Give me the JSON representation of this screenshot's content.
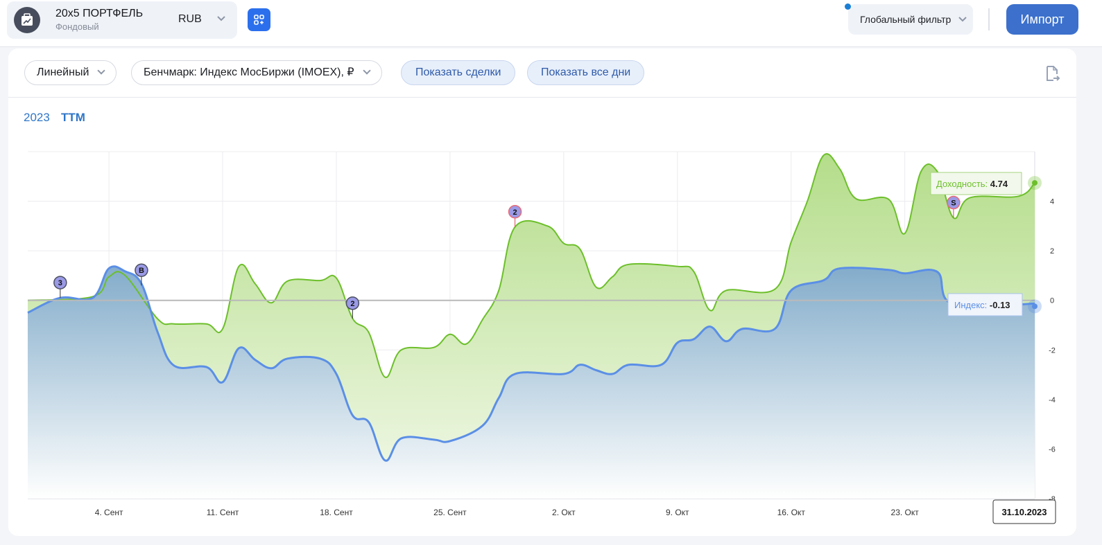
{
  "header": {
    "portfolio_title": "20x5 ПОРТФЕЛЬ",
    "portfolio_type": "Фондовый",
    "currency": "RUB",
    "global_filter": "Глобальный фильтр",
    "import_label": "Импорт"
  },
  "toolbar": {
    "scale": "Линейный",
    "benchmark": "Бенчмарк: Индекс МосБиржи (IMOEX), ₽",
    "show_trades": "Показать сделки",
    "show_all_days": "Показать все дни"
  },
  "tabs": [
    {
      "label": "2023",
      "active": false
    },
    {
      "label": "TTM",
      "active": true
    }
  ],
  "colors": {
    "portfolio": "#6cbf2a",
    "index": "#5b8fe6",
    "accent": "#3c70cc"
  },
  "chart_data": {
    "type": "area",
    "xlim": [
      "2023-08-30",
      "2023-10-31"
    ],
    "ylim": [
      -8,
      6
    ],
    "yticks": [
      -8,
      -6,
      -4,
      -2,
      0,
      2,
      4
    ],
    "xticks": [
      {
        "date": "2023-09-04",
        "label": "4. Сент"
      },
      {
        "date": "2023-09-11",
        "label": "11. Сент"
      },
      {
        "date": "2023-09-18",
        "label": "18. Сент"
      },
      {
        "date": "2023-09-25",
        "label": "25. Сент"
      },
      {
        "date": "2023-10-02",
        "label": "2. Окт"
      },
      {
        "date": "2023-10-09",
        "label": "9. Окт"
      },
      {
        "date": "2023-10-16",
        "label": "16. Окт"
      },
      {
        "date": "2023-10-23",
        "label": "23. Окт"
      }
    ],
    "grid": true,
    "series": [
      {
        "name": "Доходность",
        "color": "#6cbf2a",
        "last": "4.74",
        "points": [
          [
            "2023-08-30",
            0
          ],
          [
            "2023-09-03",
            0.15
          ],
          [
            "2023-09-04",
            0.95
          ],
          [
            "2023-09-05",
            1.0
          ],
          [
            "2023-09-07",
            -0.75
          ],
          [
            "2023-09-08",
            -0.95
          ],
          [
            "2023-09-10",
            -0.95
          ],
          [
            "2023-09-11",
            -1.15
          ],
          [
            "2023-09-12",
            1.37
          ],
          [
            "2023-09-13",
            0.67
          ],
          [
            "2023-09-14",
            -0.1
          ],
          [
            "2023-09-15",
            0.78
          ],
          [
            "2023-09-17",
            0.8
          ],
          [
            "2023-09-18",
            0.9
          ],
          [
            "2023-09-19",
            -0.73
          ],
          [
            "2023-09-20",
            -1.3
          ],
          [
            "2023-09-21",
            -3.1
          ],
          [
            "2023-09-22",
            -2.0
          ],
          [
            "2023-09-24",
            -1.9
          ],
          [
            "2023-09-25",
            -1.37
          ],
          [
            "2023-09-26",
            -1.76
          ],
          [
            "2023-09-27",
            -0.78
          ],
          [
            "2023-09-28",
            0.4
          ],
          [
            "2023-09-29",
            2.96
          ],
          [
            "2023-10-01",
            3.0
          ],
          [
            "2023-10-02",
            2.3
          ],
          [
            "2023-10-03",
            2.07
          ],
          [
            "2023-10-04",
            0.53
          ],
          [
            "2023-10-05",
            0.95
          ],
          [
            "2023-10-06",
            1.45
          ],
          [
            "2023-10-09",
            1.37
          ],
          [
            "2023-10-10",
            1.17
          ],
          [
            "2023-10-11",
            -0.4
          ],
          [
            "2023-10-12",
            0.4
          ],
          [
            "2023-10-15",
            0.45
          ],
          [
            "2023-10-16",
            2.35
          ],
          [
            "2023-10-17",
            4.0
          ],
          [
            "2023-10-18",
            5.85
          ],
          [
            "2023-10-19",
            5.3
          ],
          [
            "2023-10-20",
            4.1
          ],
          [
            "2023-10-22",
            4.08
          ],
          [
            "2023-10-23",
            2.7
          ],
          [
            "2023-10-24",
            5.2
          ],
          [
            "2023-10-25",
            5.2
          ],
          [
            "2023-10-26",
            3.33
          ],
          [
            "2023-10-27",
            4.14
          ],
          [
            "2023-10-30",
            4.2
          ],
          [
            "2023-10-31",
            4.74
          ]
        ]
      },
      {
        "name": "Индекс",
        "color": "#5b8fe6",
        "last": "-0.13",
        "points": [
          [
            "2023-08-30",
            -0.5
          ],
          [
            "2023-09-01",
            0.1
          ],
          [
            "2023-09-03",
            0.1
          ],
          [
            "2023-09-04",
            1.29
          ],
          [
            "2023-09-05",
            1.17
          ],
          [
            "2023-09-06",
            0.67
          ],
          [
            "2023-09-07",
            -1.29
          ],
          [
            "2023-09-08",
            -2.63
          ],
          [
            "2023-09-10",
            -2.69
          ],
          [
            "2023-09-11",
            -3.3
          ],
          [
            "2023-09-12",
            -1.93
          ],
          [
            "2023-09-13",
            -2.4
          ],
          [
            "2023-09-14",
            -2.74
          ],
          [
            "2023-09-15",
            -2.35
          ],
          [
            "2023-09-17",
            -2.35
          ],
          [
            "2023-09-18",
            -2.97
          ],
          [
            "2023-09-19",
            -4.64
          ],
          [
            "2023-09-20",
            -4.92
          ],
          [
            "2023-09-21",
            -6.46
          ],
          [
            "2023-09-22",
            -5.57
          ],
          [
            "2023-09-24",
            -5.62
          ],
          [
            "2023-09-25",
            -5.68
          ],
          [
            "2023-09-27",
            -5.06
          ],
          [
            "2023-09-28",
            -3.94
          ],
          [
            "2023-09-29",
            -2.97
          ],
          [
            "2023-10-02",
            -2.97
          ],
          [
            "2023-10-03",
            -2.6
          ],
          [
            "2023-10-04",
            -2.82
          ],
          [
            "2023-10-05",
            -2.97
          ],
          [
            "2023-10-06",
            -2.6
          ],
          [
            "2023-10-08",
            -2.6
          ],
          [
            "2023-10-09",
            -1.71
          ],
          [
            "2023-10-10",
            -1.57
          ],
          [
            "2023-10-11",
            -1.06
          ],
          [
            "2023-10-12",
            -1.65
          ],
          [
            "2023-10-13",
            -1.15
          ],
          [
            "2023-10-15",
            -1.15
          ],
          [
            "2023-10-16",
            0.4
          ],
          [
            "2023-10-18",
            0.81
          ],
          [
            "2023-10-19",
            1.29
          ],
          [
            "2023-10-22",
            1.23
          ],
          [
            "2023-10-23",
            1.09
          ],
          [
            "2023-10-25",
            1.15
          ],
          [
            "2023-10-26",
            -0.17
          ],
          [
            "2023-10-31",
            -0.13
          ]
        ]
      }
    ],
    "markers": [
      {
        "date": "2023-09-01",
        "value": 0.1,
        "label": "3",
        "type": "dark"
      },
      {
        "date": "2023-09-06",
        "value": 0.6,
        "label": "B",
        "type": "dark"
      },
      {
        "date": "2023-09-19",
        "value": -0.73,
        "label": "2",
        "type": "dark"
      },
      {
        "date": "2023-09-29",
        "value": 2.96,
        "label": "2",
        "type": "red"
      },
      {
        "date": "2023-10-26",
        "value": 3.33,
        "label": "S",
        "type": "red"
      }
    ],
    "crosshair_date": "31.10.2023"
  }
}
